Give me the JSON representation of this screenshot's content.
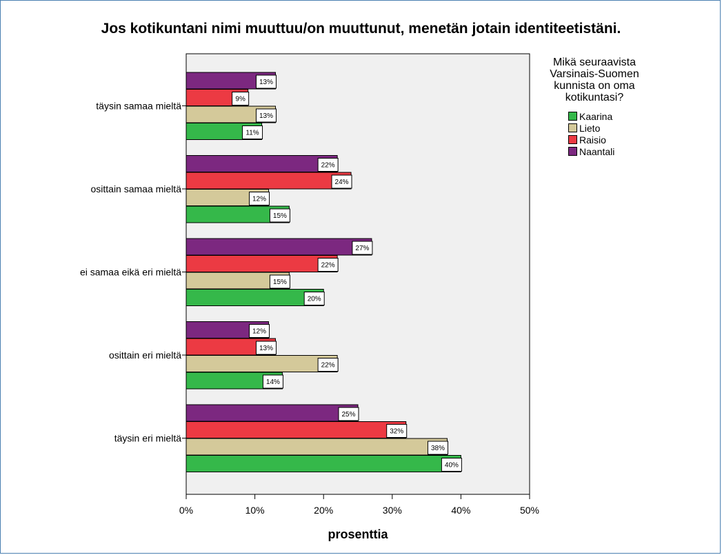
{
  "chart_data": {
    "type": "bar",
    "orientation": "horizontal",
    "title": "Jos kotikuntani nimi muuttuu/on muuttunut, menetän jotain identiteetistäni.",
    "xlabel": "prosenttia",
    "ylabel": "",
    "xlim": [
      0,
      50
    ],
    "x_ticks": [
      "0%",
      "10%",
      "20%",
      "30%",
      "40%",
      "50%"
    ],
    "categories": [
      "täysin samaa mieltä",
      "osittain samaa mieltä",
      "ei samaa eikä eri mieltä",
      "osittain eri mieltä",
      "täysin eri mieltä"
    ],
    "legend_title": "Mikä seuraavista Varsinais-Suomen kunnista on oma kotikuntasi?",
    "legend_title_lines": [
      "Mikä seuraavista",
      "Varsinais-Suomen",
      "kunnista on oma",
      "kotikuntasi?"
    ],
    "legend_position": "right",
    "grid": false,
    "series": [
      {
        "name": "Kaarina",
        "color": "#35b84a",
        "values": [
          11,
          15,
          20,
          14,
          40
        ],
        "labels": [
          "11%",
          "15%",
          "20%",
          "14%",
          "40%"
        ]
      },
      {
        "name": "Lieto",
        "color": "#d4c99a",
        "values": [
          13,
          12,
          15,
          22,
          38
        ],
        "labels": [
          "13%",
          "12%",
          "15%",
          "22%",
          "38%"
        ]
      },
      {
        "name": "Raisio",
        "color": "#ec3a43",
        "values": [
          9,
          24,
          22,
          13,
          32
        ],
        "labels": [
          "9%",
          "24%",
          "22%",
          "13%",
          "32%"
        ]
      },
      {
        "name": "Naantali",
        "color": "#7c2880",
        "values": [
          13,
          22,
          27,
          12,
          25
        ],
        "labels": [
          "13%",
          "22%",
          "27%",
          "12%",
          "25%"
        ]
      }
    ],
    "plot_background": "#f0f0f0"
  }
}
